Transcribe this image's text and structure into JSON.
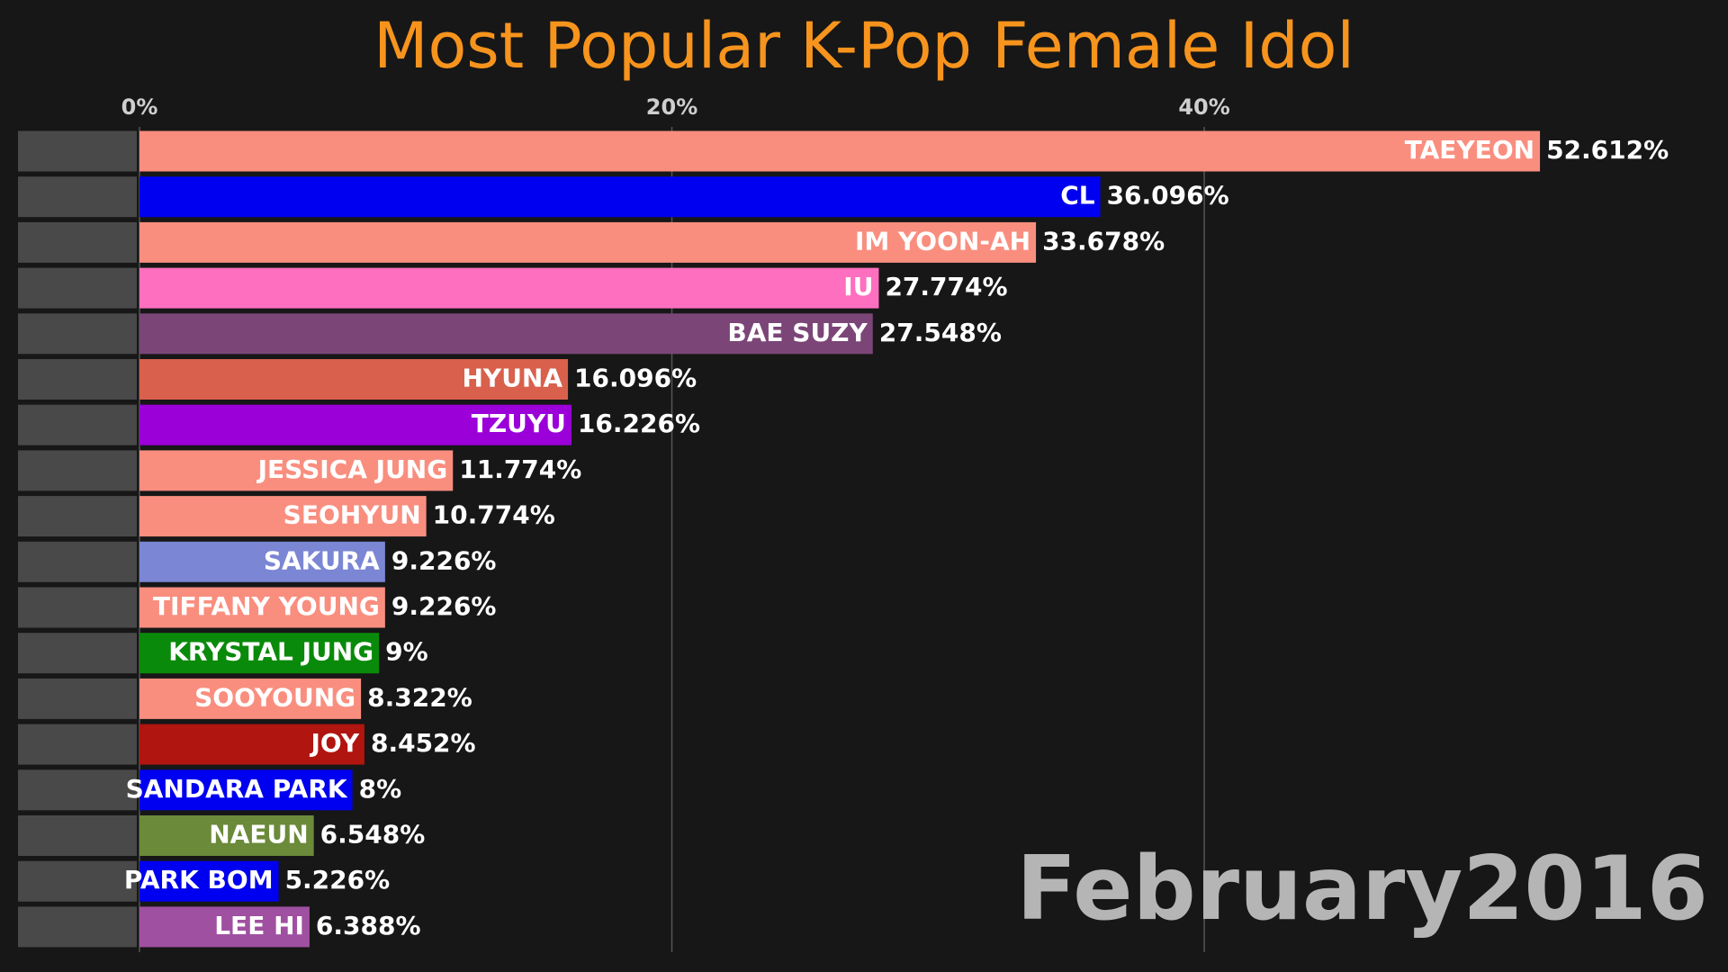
{
  "chart_data": {
    "type": "bar",
    "orientation": "horizontal",
    "title": "Most Popular K-Pop Female Idol",
    "date_label": "February2016",
    "categories": [
      "TAEYEON",
      "CL",
      "IM YOON-AH",
      "IU",
      "BAE SUZY",
      "HYUNA",
      "TZUYU",
      "JESSICA JUNG",
      "SEOHYUN",
      "SAKURA",
      "TIFFANY YOUNG",
      "KRYSTAL JUNG",
      "SOOYOUNG",
      "JOY",
      "SANDARA PARK",
      "NAEUN",
      "PARK BOM",
      "LEE HI"
    ],
    "values": [
      52.612,
      36.096,
      33.678,
      27.774,
      27.548,
      16.096,
      16.226,
      11.774,
      10.774,
      9.226,
      9.226,
      9,
      8.322,
      8.452,
      8,
      6.548,
      5.226,
      6.388
    ],
    "value_labels": [
      "52.612%",
      "36.096%",
      "33.678%",
      "27.774%",
      "27.548%",
      "16.096%",
      "16.226%",
      "11.774%",
      "10.774%",
      "9.226%",
      "9.226%",
      "9%",
      "8.322%",
      "8.452%",
      "8%",
      "6.548%",
      "5.226%",
      "6.388%"
    ],
    "colors": [
      "#f98e7f",
      "#0000f0",
      "#f98e7f",
      "#ff6fbf",
      "#7b4677",
      "#d9604c",
      "#9b00d9",
      "#f98e7f",
      "#f98e7f",
      "#7b86d4",
      "#f98e7f",
      "#0a8a0a",
      "#f98e7f",
      "#b0150f",
      "#0000f0",
      "#6b8a3a",
      "#0000f0",
      "#a050a0"
    ],
    "xlim": [
      0,
      59
    ],
    "xticks": [
      {
        "value": 0,
        "label": "0%"
      },
      {
        "value": 20,
        "label": "20%"
      },
      {
        "value": 40,
        "label": "40%"
      }
    ],
    "grid": true
  }
}
